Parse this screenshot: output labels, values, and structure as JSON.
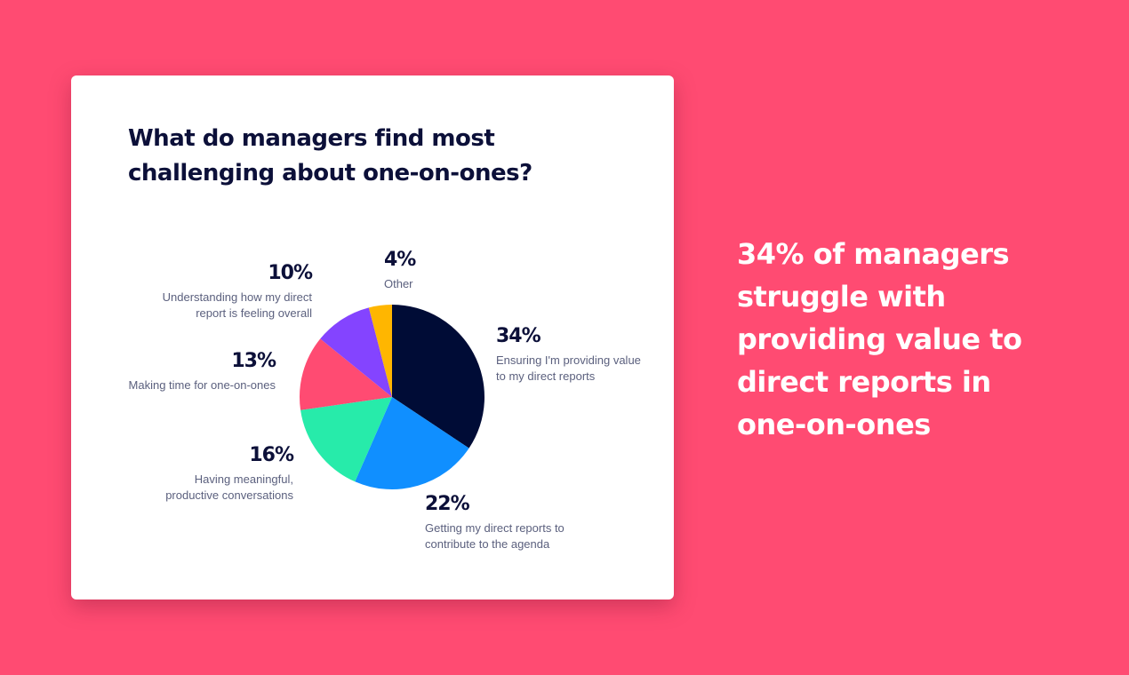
{
  "headline": "34% of managers struggle with providing value to direct reports in one-on-ones",
  "chart_data": {
    "type": "pie",
    "title": "What do managers find most challenging about one-on-ones?",
    "slices": [
      {
        "label": "Ensuring I'm providing value to my direct reports",
        "value": 34,
        "pct_label": "34%",
        "color": "#000c36"
      },
      {
        "label": "Getting my direct reports to contribute to the agenda",
        "value": 22,
        "pct_label": "22%",
        "color": "#108fff"
      },
      {
        "label": "Having meaningful, productive conversations",
        "value": 16,
        "pct_label": "16%",
        "color": "#27ebaa"
      },
      {
        "label": "Making time for one-on-ones",
        "value": 13,
        "pct_label": "13%",
        "color": "#ff4b72"
      },
      {
        "label": "Understanding how my direct report is feeling overall",
        "value": 10,
        "pct_label": "10%",
        "color": "#8444ff"
      },
      {
        "label": "Other",
        "value": 4,
        "pct_label": "4%",
        "color": "#ffb600"
      }
    ],
    "start": "top",
    "direction": "clockwise"
  }
}
